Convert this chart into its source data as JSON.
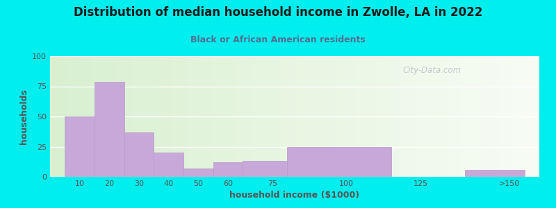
{
  "title": "Distribution of median household income in Zwolle, LA in 2022",
  "subtitle": "Black or African American residents",
  "xlabel": "household income ($1000)",
  "ylabel": "households",
  "background_outer": "#00EEEE",
  "bar_color": "#c8a8d8",
  "bar_edge_color": "#b898c8",
  "title_color": "#1a1a1a",
  "subtitle_color": "#507090",
  "axis_label_color": "#555555",
  "tick_label_color": "#555555",
  "watermark": "City-Data.com",
  "values": [
    50,
    79,
    37,
    20,
    7,
    12,
    13,
    25,
    0,
    6
  ],
  "bar_lefts": [
    5,
    15,
    25,
    35,
    45,
    55,
    65,
    80,
    115,
    140
  ],
  "bar_widths": [
    10,
    10,
    10,
    10,
    10,
    10,
    15,
    35,
    10,
    20
  ],
  "xtick_positions": [
    10,
    20,
    30,
    40,
    50,
    60,
    75,
    100,
    125,
    155
  ],
  "xtick_labels": [
    "10",
    "20",
    "30",
    "40",
    "50",
    "60",
    "75",
    "100",
    "125",
    ">150"
  ],
  "xlim": [
    0,
    165
  ],
  "ylim": [
    0,
    100
  ],
  "yticks": [
    0,
    25,
    50,
    75,
    100
  ]
}
